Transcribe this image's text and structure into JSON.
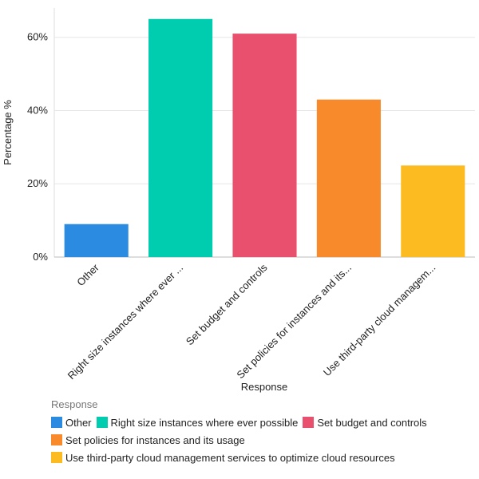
{
  "chart_data": {
    "type": "bar",
    "x_label": "Response",
    "y_label": "Percentage %",
    "categories": [
      "Other",
      "Right size instances where ever ...",
      "Set budget and controls",
      "Set policies for instances and its...",
      "Use third-party cloud managem..."
    ],
    "values": [
      9,
      65,
      61,
      43,
      25
    ],
    "colors": [
      "#2b8be0",
      "#00ccb0",
      "#e8506e",
      "#f88a2b",
      "#fbbb21"
    ],
    "ylim": [
      0,
      68
    ],
    "yticks": [
      {
        "value": 0,
        "label": "0%"
      },
      {
        "value": 20,
        "label": "20%"
      },
      {
        "value": 40,
        "label": "40%"
      },
      {
        "value": 60,
        "label": "60%"
      }
    ],
    "grid": true,
    "legend": {
      "title": "Response",
      "position": "bottom",
      "items": [
        "Other",
        "Right size instances where ever possible",
        "Set budget and controls",
        "Set policies for instances and its usage",
        "Use third-party cloud management services to optimize cloud resources"
      ]
    }
  }
}
